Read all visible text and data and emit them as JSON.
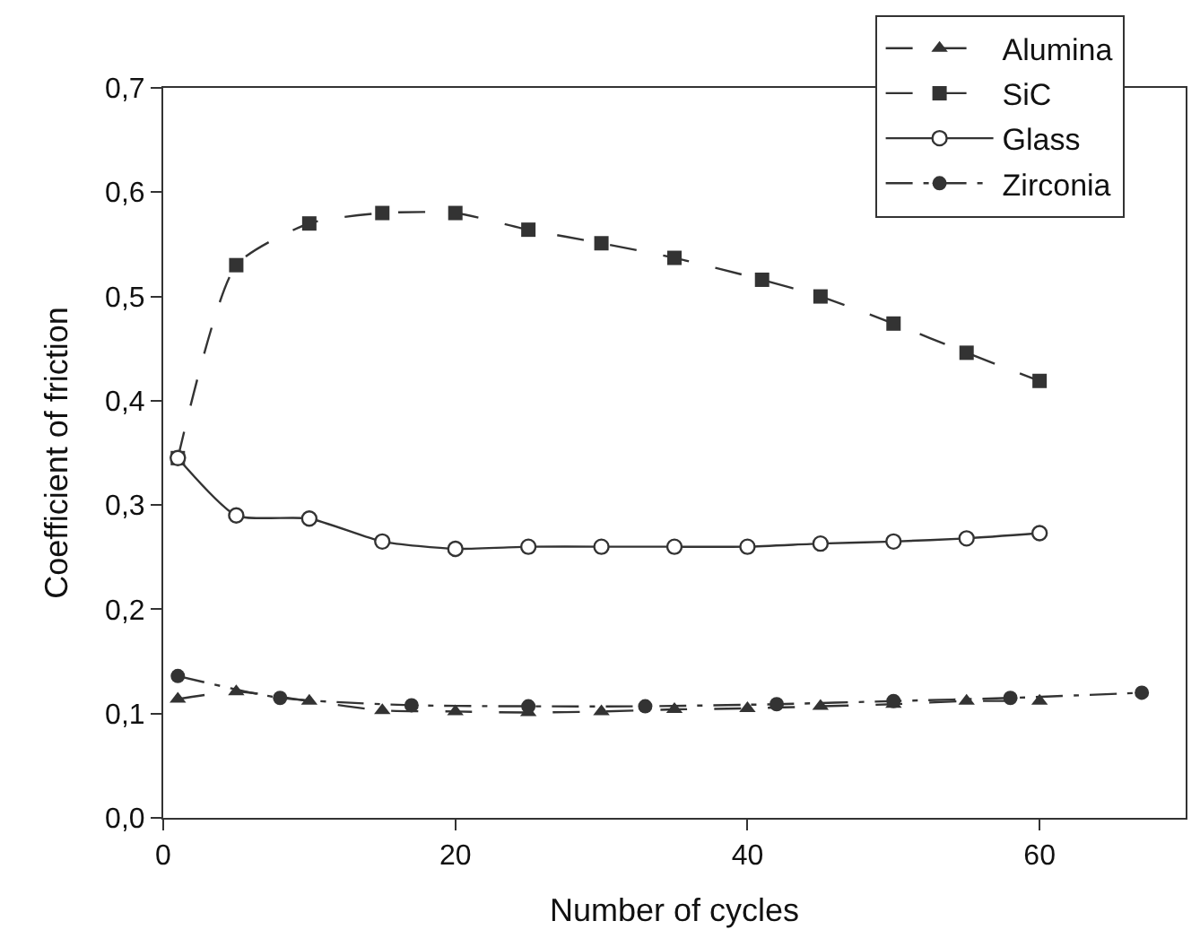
{
  "chart_data": {
    "type": "line",
    "xlabel": "Number of cycles",
    "ylabel": "Coefficient of friction",
    "xlim": [
      0,
      70
    ],
    "xticks": [
      0,
      20,
      40,
      60
    ],
    "ylim": [
      0,
      0.7
    ],
    "yticks": [
      {
        "value": 0,
        "label": "0,0"
      },
      {
        "value": 0.1,
        "label": "0,1"
      },
      {
        "value": 0.2,
        "label": "0,2"
      },
      {
        "value": 0.3,
        "label": "0,3"
      },
      {
        "value": 0.4,
        "label": "0,4"
      },
      {
        "value": 0.5,
        "label": "0,5"
      },
      {
        "value": 0.6,
        "label": "0,6"
      },
      {
        "value": 0.7,
        "label": "0,7"
      }
    ],
    "legend": "top right",
    "series": [
      {
        "name": "Alumina",
        "color": "#333333",
        "marker": "triangle",
        "line_style": "dashed",
        "x": [
          1,
          5,
          10,
          15,
          20,
          25,
          30,
          35,
          40,
          45,
          50,
          55,
          60
        ],
        "values": [
          0.114,
          0.121,
          0.112,
          0.103,
          0.102,
          0.101,
          0.102,
          0.104,
          0.105,
          0.107,
          0.109,
          0.112,
          0.112
        ]
      },
      {
        "name": "SiC",
        "color": "#333333",
        "marker": "square",
        "line_style": "dashed",
        "x": [
          1,
          5,
          10,
          15,
          20,
          25,
          30,
          35,
          41,
          45,
          50,
          55,
          60
        ],
        "values": [
          0.345,
          0.53,
          0.57,
          0.58,
          0.58,
          0.564,
          0.551,
          0.537,
          0.516,
          0.5,
          0.474,
          0.446,
          0.419
        ]
      },
      {
        "name": "Glass",
        "color": "#333333",
        "marker": "circle-open",
        "line_style": "solid",
        "x": [
          1,
          5,
          10,
          15,
          20,
          25,
          30,
          35,
          40,
          45,
          50,
          55,
          60
        ],
        "values": [
          0.345,
          0.29,
          0.287,
          0.265,
          0.258,
          0.26,
          0.26,
          0.26,
          0.26,
          0.263,
          0.265,
          0.268,
          0.273
        ]
      },
      {
        "name": "Zirconia",
        "color": "#333333",
        "marker": "circle",
        "line_style": "dashdot",
        "x": [
          1,
          8,
          17,
          25,
          33,
          42,
          50,
          58,
          67
        ],
        "values": [
          0.136,
          0.115,
          0.108,
          0.107,
          0.107,
          0.109,
          0.112,
          0.115,
          0.12
        ]
      }
    ]
  }
}
